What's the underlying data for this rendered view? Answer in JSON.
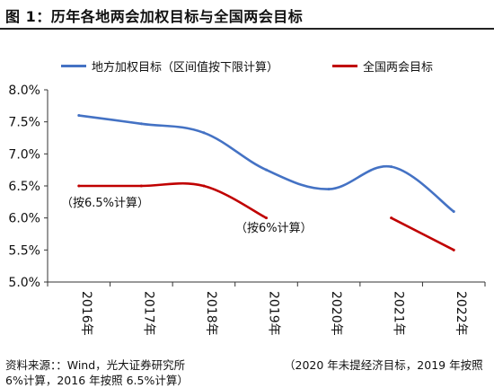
{
  "figure": {
    "title": "图 1：历年各地两会加权目标与全国两会目标"
  },
  "source": {
    "left_line1": "资料来源：：Wind，光大证券研究所",
    "right_line1": "（2020 年未提经济目标，2019 年按照",
    "line2": "6%计算，2016 年按照 6.5%计算）"
  },
  "colors": {
    "local": "#4472C4",
    "national": "#C00000",
    "axis": "#333333"
  },
  "chart_data": {
    "type": "line",
    "title": "",
    "xlabel": "",
    "ylabel": "",
    "categories": [
      "2016年",
      "2017年",
      "2018年",
      "2019年",
      "2020年",
      "2021年",
      "2022年"
    ],
    "ylim": [
      5.0,
      8.0
    ],
    "yticks": [
      5.0,
      5.5,
      6.0,
      6.5,
      7.0,
      7.5,
      8.0
    ],
    "ytick_labels": [
      "5.0%",
      "5.5%",
      "6.0%",
      "6.5%",
      "7.0%",
      "7.5%",
      "8.0%"
    ],
    "grid": false,
    "legend_position": "top",
    "series": [
      {
        "name": "地方加权目标（区间值按下限计算）",
        "color": "#4472C4",
        "values": [
          7.6,
          7.47,
          7.33,
          6.75,
          6.45,
          6.8,
          6.1
        ]
      },
      {
        "name": "全国两会目标",
        "color": "#C00000",
        "segments": [
          {
            "x": [
              0,
              1,
              2,
              3
            ],
            "values": [
              6.5,
              6.5,
              6.5,
              6.0
            ]
          },
          {
            "x": [
              5,
              6
            ],
            "values": [
              6.0,
              5.5
            ]
          }
        ]
      }
    ],
    "annotations": [
      "（按6.5%计算）",
      "（按6%计算）"
    ]
  }
}
